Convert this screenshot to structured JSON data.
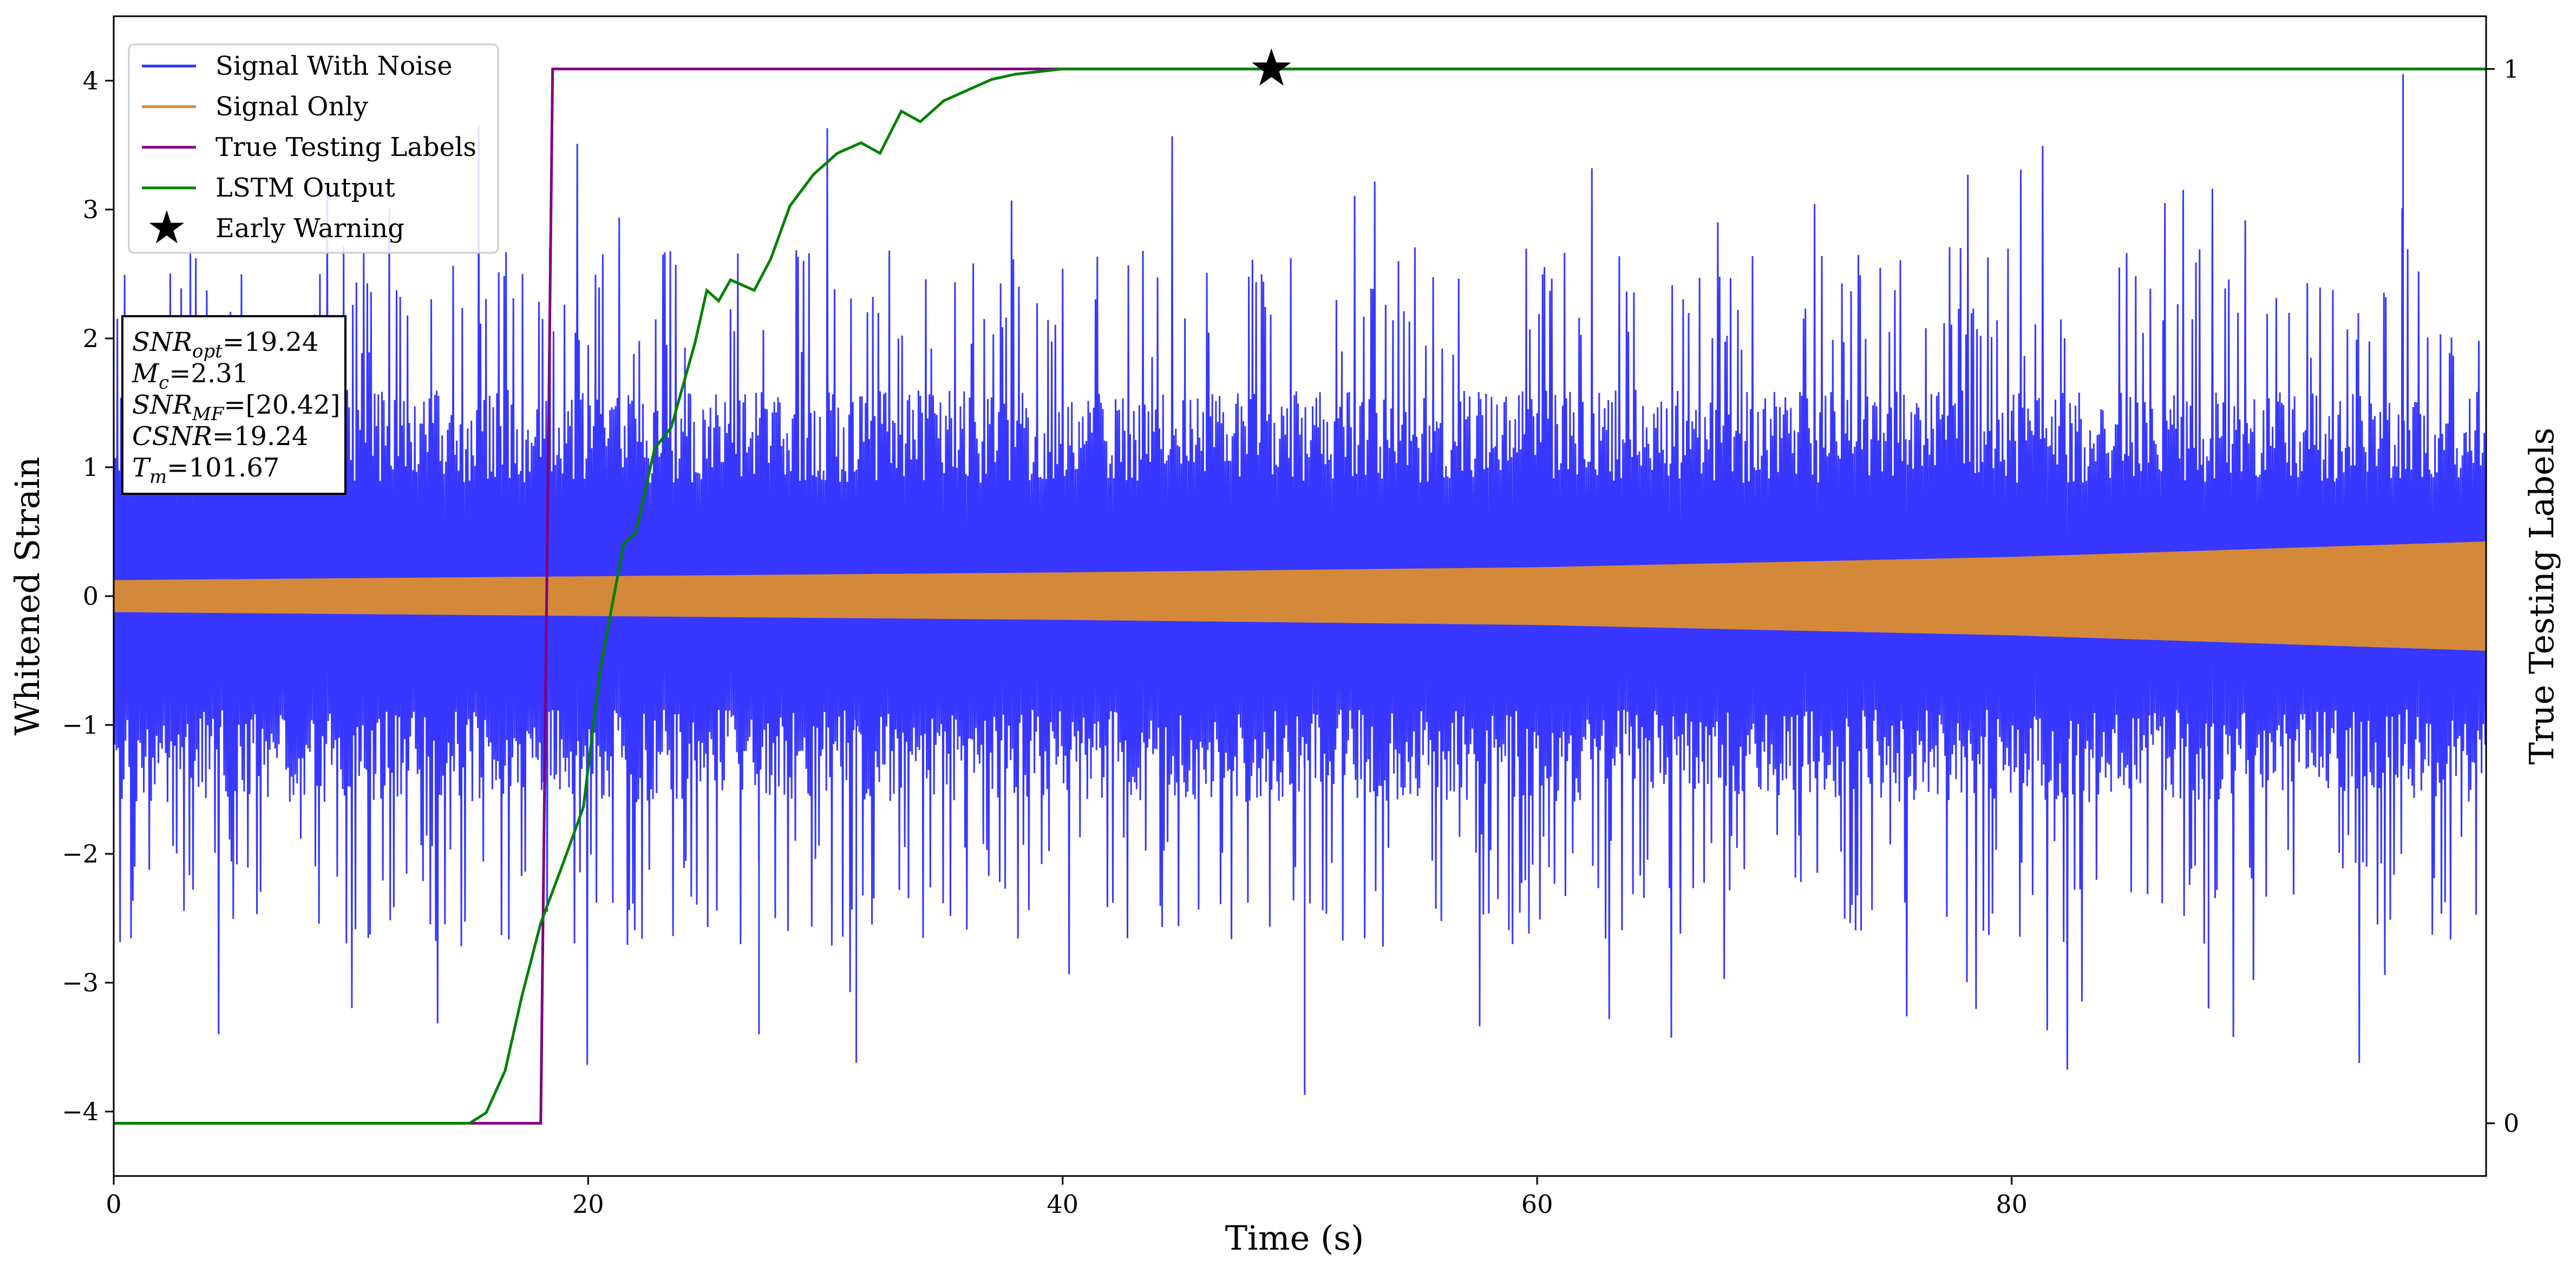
{
  "chart_data": {
    "type": "line",
    "xlabel": "Time (s)",
    "ylabel": "Whitened Strain",
    "y2label": "True Testing Labels",
    "xlim": [
      0,
      100
    ],
    "ylim": [
      -4.5,
      4.5
    ],
    "y2lim": [
      -0.05,
      1.05
    ],
    "x_ticks": [
      "0",
      "20",
      "40",
      "60",
      "80"
    ],
    "x_tick_values": [
      0,
      20,
      40,
      60,
      80
    ],
    "y_ticks": [
      "−4",
      "−3",
      "−2",
      "−1",
      "0",
      "1",
      "2",
      "3",
      "4"
    ],
    "y_tick_values": [
      -4,
      -3,
      -2,
      -1,
      0,
      1,
      2,
      3,
      4
    ],
    "y2_ticks": [
      "0",
      "1"
    ],
    "y2_tick_values": [
      0,
      1
    ],
    "grid": false,
    "legend_position": "top-left",
    "series": [
      {
        "name": "Signal With Noise",
        "color": "#3333ff",
        "style": "noisy-band",
        "typical_range": [
          -1.6,
          1.6
        ],
        "max_value": 4.05,
        "min_value": -3.87
      },
      {
        "name": "Signal Only",
        "color": "#d4893a",
        "style": "growing-envelope",
        "envelope": [
          {
            "x": 0,
            "amplitude": 0.12
          },
          {
            "x": 20,
            "amplitude": 0.15
          },
          {
            "x": 40,
            "amplitude": 0.18
          },
          {
            "x": 60,
            "amplitude": 0.22
          },
          {
            "x": 80,
            "amplitude": 0.3
          },
          {
            "x": 100,
            "amplitude": 0.42
          }
        ]
      },
      {
        "name": "True Testing Labels",
        "color": "#800080",
        "axis": "right",
        "points": [
          [
            0,
            0
          ],
          [
            18,
            0
          ],
          [
            18.5,
            1
          ],
          [
            100,
            1
          ]
        ]
      },
      {
        "name": "LSTM Output",
        "color": "#008000",
        "axis": "right",
        "points": [
          [
            0,
            0
          ],
          [
            15,
            0
          ],
          [
            15.7,
            0.01
          ],
          [
            16.5,
            0.05
          ],
          [
            17.2,
            0.12
          ],
          [
            18,
            0.19
          ],
          [
            19,
            0.25
          ],
          [
            19.8,
            0.3
          ],
          [
            20.5,
            0.43
          ],
          [
            21.5,
            0.55
          ],
          [
            22,
            0.56
          ],
          [
            22.8,
            0.64
          ],
          [
            23.5,
            0.66
          ],
          [
            24,
            0.7
          ],
          [
            24.5,
            0.74
          ],
          [
            25,
            0.79
          ],
          [
            25.5,
            0.78
          ],
          [
            26,
            0.8
          ],
          [
            27,
            0.79
          ],
          [
            27.7,
            0.82
          ],
          [
            28.5,
            0.87
          ],
          [
            29.5,
            0.9
          ],
          [
            30.5,
            0.92
          ],
          [
            31.5,
            0.93
          ],
          [
            32.3,
            0.92
          ],
          [
            33.2,
            0.96
          ],
          [
            34,
            0.95
          ],
          [
            35,
            0.97
          ],
          [
            36,
            0.98
          ],
          [
            37,
            0.99
          ],
          [
            38,
            0.995
          ],
          [
            40,
            1.0
          ],
          [
            44,
            1.0
          ],
          [
            46,
            1.0
          ],
          [
            48,
            1.0
          ],
          [
            52,
            1.0
          ],
          [
            60,
            1.0
          ],
          [
            100,
            1.0
          ]
        ]
      }
    ],
    "markers": [
      {
        "name": "Early Warning",
        "x": 48.8,
        "y2": 1.0,
        "symbol": "star",
        "color": "#000000"
      }
    ],
    "legend": [
      "Signal With Noise",
      "Signal Only",
      "True Testing Labels",
      "LSTM Output",
      "Early Warning"
    ],
    "annotation": {
      "lines": [
        {
          "symbol": "SNR",
          "sub": "opt",
          "value": "=19.24"
        },
        {
          "symbol": "M",
          "sub": "c",
          "value": "=2.31"
        },
        {
          "symbol": "SNR",
          "sub": "MF",
          "value": "=[20.42]"
        },
        {
          "symbol": "CSNR",
          "sub": "",
          "value": "=19.24"
        },
        {
          "symbol": "T",
          "sub": "m",
          "value": "=101.67"
        }
      ]
    }
  }
}
